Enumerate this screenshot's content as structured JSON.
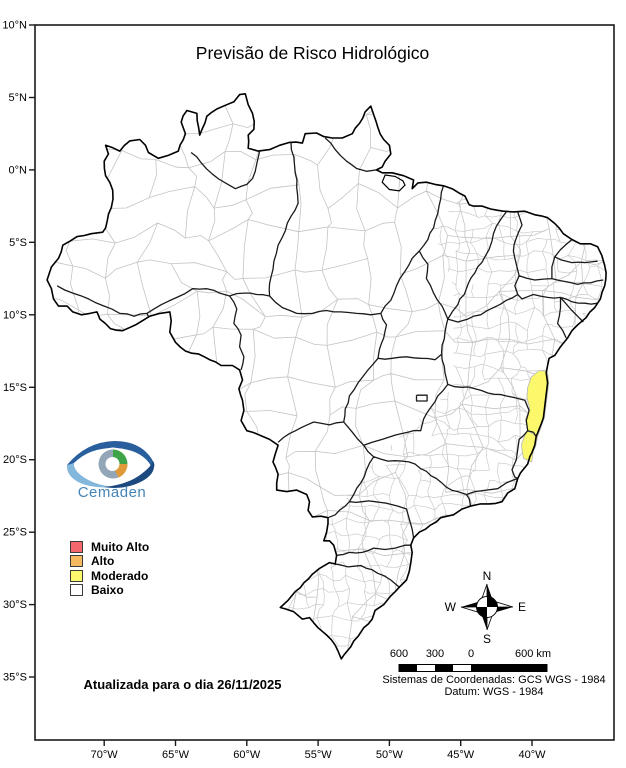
{
  "title": "Previsão de Risco Hidrológico",
  "logo": {
    "text": "Cemaden"
  },
  "legend": {
    "items": [
      {
        "label": "Muito Alto",
        "color": "#F4686D"
      },
      {
        "label": "Alto",
        "color": "#F7B95F"
      },
      {
        "label": "Moderado",
        "color": "#FBF96B"
      },
      {
        "label": "Baixo",
        "color": "#FFFFFF"
      }
    ]
  },
  "update_text": "Atualizada para o dia 26/11/2025",
  "footer": {
    "line1": "Sistemas de Coordenadas: GCS WGS - 1984",
    "line2": "Datum: WGS - 1984"
  },
  "compass": {
    "n": "N",
    "s": "S",
    "e": "E",
    "w": "W"
  },
  "scalebar": {
    "labels": [
      "600",
      "300",
      "0"
    ],
    "end_label": "600 km"
  },
  "axes": {
    "lat": [
      {
        "label": "10°N",
        "value": 10
      },
      {
        "label": "5°N",
        "value": 5
      },
      {
        "label": "0°N",
        "value": 0
      },
      {
        "label": "5°S",
        "value": -5
      },
      {
        "label": "10°S",
        "value": -10
      },
      {
        "label": "15°S",
        "value": -15
      },
      {
        "label": "20°S",
        "value": -20
      },
      {
        "label": "25°S",
        "value": -25
      },
      {
        "label": "30°S",
        "value": -30
      },
      {
        "label": "35°S",
        "value": -35
      }
    ],
    "lon": [
      {
        "label": "70°W",
        "value": -70
      },
      {
        "label": "65°W",
        "value": -65
      },
      {
        "label": "60°W",
        "value": -60
      },
      {
        "label": "55°W",
        "value": -55
      },
      {
        "label": "50°W",
        "value": -50
      },
      {
        "label": "45°W",
        "value": -45
      },
      {
        "label": "40°W",
        "value": -40
      }
    ]
  },
  "map": {
    "colors": {
      "state_border": "#1a1a1a",
      "country_border": "#000000",
      "municipal_border": "#c6c6c6",
      "risk_moderado_fill": "#FBF96B",
      "frame": "#1a1a1a"
    }
  }
}
